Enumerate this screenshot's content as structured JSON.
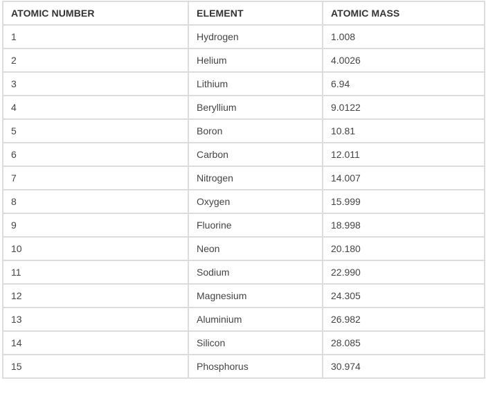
{
  "table": {
    "headers": [
      "ATOMIC NUMBER",
      "ELEMENT",
      "ATOMIC MASS"
    ],
    "rows": [
      [
        "1",
        "Hydrogen",
        "1.008"
      ],
      [
        "2",
        "Helium",
        "4.0026"
      ],
      [
        "3",
        "Lithium",
        "6.94"
      ],
      [
        "4",
        "Beryllium",
        "9.0122"
      ],
      [
        "5",
        "Boron",
        "10.81"
      ],
      [
        "6",
        "Carbon",
        "12.011"
      ],
      [
        "7",
        "Nitrogen",
        "14.007"
      ],
      [
        "8",
        "Oxygen",
        "15.999"
      ],
      [
        "9",
        "Fluorine",
        "18.998"
      ],
      [
        "10",
        "Neon",
        "20.180"
      ],
      [
        "11",
        "Sodium",
        "22.990"
      ],
      [
        "12",
        "Magnesium",
        "24.305"
      ],
      [
        "13",
        "Aluminium",
        "26.982"
      ],
      [
        "14",
        "Silicon",
        "28.085"
      ],
      [
        "15",
        "Phosphorus",
        "30.974"
      ]
    ]
  },
  "colors": {
    "border": "#dcdcdc",
    "header_text": "#333333",
    "cell_text": "#444444"
  }
}
